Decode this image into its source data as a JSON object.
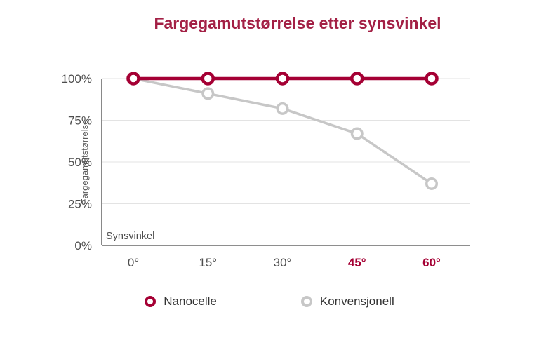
{
  "title": {
    "text": "Fargegamutstørrelse etter synsvinkel",
    "color": "#A32045"
  },
  "colors": {
    "accent": "#A50034",
    "series_gray": "#C7C7C7",
    "tick_text": "#4D4D4D",
    "axis_line": "#4A4A4A",
    "gridline": "#E3E3E3",
    "axis_title_text": "#595959",
    "legend_text": "#333333"
  },
  "chart_data": {
    "type": "line",
    "title": "Fargegamutstørrelse etter synsvinkel",
    "xlabel": "Synsvinkel",
    "ylabel": "Fargegamutstørrelse",
    "ylim": [
      0,
      100
    ],
    "grid": "horizontal",
    "legend_position": "bottom",
    "x_values": [
      0,
      15,
      30,
      45,
      60
    ],
    "xticks": [
      {
        "label": "0°",
        "emphasis": false
      },
      {
        "label": "15°",
        "emphasis": false
      },
      {
        "label": "30°",
        "emphasis": false
      },
      {
        "label": "45°",
        "emphasis": true
      },
      {
        "label": "60°",
        "emphasis": true
      }
    ],
    "yticks": [
      {
        "label": "100%",
        "value": 100
      },
      {
        "label": "75%",
        "value": 75
      },
      {
        "label": "50%",
        "value": 50
      },
      {
        "label": "25%",
        "value": 25
      },
      {
        "label": "0%",
        "value": 0
      }
    ],
    "series": [
      {
        "name": "Konvensjonell",
        "values": [
          100,
          91,
          82,
          67,
          37
        ],
        "color": "#C7C7C7"
      },
      {
        "name": "Nanocelle",
        "values": [
          100,
          100,
          100,
          100,
          100
        ],
        "color": "#A50034"
      }
    ]
  },
  "legend": {
    "items": [
      {
        "label": "Nanocelle",
        "color": "#A50034"
      },
      {
        "label": "Konvensjonell",
        "color": "#C7C7C7"
      }
    ]
  }
}
